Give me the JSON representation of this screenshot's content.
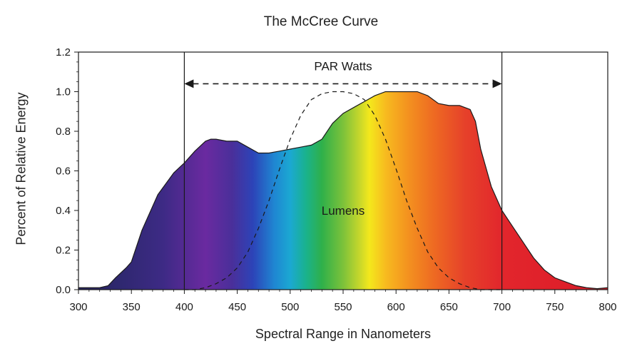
{
  "chart_data": {
    "type": "area",
    "title": "The McCree Curve",
    "xlabel": "Spectral Range in Nanometers",
    "ylabel": "Percent of Relative Energy",
    "xlim": [
      300,
      800
    ],
    "ylim": [
      0.0,
      1.2
    ],
    "x_ticks": [
      "300",
      "350",
      "400",
      "450",
      "500",
      "550",
      "600",
      "650",
      "700",
      "750",
      "800"
    ],
    "y_ticks": [
      "0.0",
      "0.2",
      "0.4",
      "0.6",
      "0.8",
      "1.0",
      "1.2"
    ],
    "grid": false,
    "fill": "visible spectrum gradient",
    "series": [
      {
        "style": "filled spectrum area",
        "x": [
          300,
          320,
          328,
          335,
          345,
          350,
          360,
          375,
          390,
          400,
          410,
          420,
          425,
          430,
          440,
          450,
          460,
          470,
          480,
          490,
          500,
          510,
          520,
          530,
          540,
          550,
          560,
          570,
          580,
          590,
          600,
          610,
          620,
          630,
          640,
          650,
          660,
          670,
          675,
          680,
          690,
          700,
          710,
          720,
          730,
          740,
          750,
          760,
          770,
          780,
          790,
          800
        ],
        "values": [
          0.01,
          0.01,
          0.02,
          0.06,
          0.11,
          0.14,
          0.3,
          0.48,
          0.59,
          0.64,
          0.7,
          0.75,
          0.76,
          0.76,
          0.75,
          0.75,
          0.72,
          0.69,
          0.69,
          0.7,
          0.71,
          0.72,
          0.73,
          0.76,
          0.84,
          0.89,
          0.92,
          0.95,
          0.98,
          1.0,
          1.0,
          1.0,
          1.0,
          0.98,
          0.94,
          0.93,
          0.93,
          0.91,
          0.85,
          0.71,
          0.52,
          0.4,
          0.32,
          0.24,
          0.16,
          0.1,
          0.06,
          0.04,
          0.02,
          0.01,
          0.005,
          0.01
        ]
      },
      {
        "name": "Lumens",
        "style": "dashed",
        "x": [
          400,
          410,
          420,
          430,
          440,
          450,
          460,
          470,
          480,
          490,
          500,
          510,
          520,
          530,
          540,
          550,
          560,
          570,
          580,
          590,
          600,
          610,
          620,
          630,
          640,
          650,
          660,
          670,
          680,
          690,
          700
        ],
        "values": [
          0.0,
          0.0,
          0.01,
          0.03,
          0.06,
          0.11,
          0.19,
          0.31,
          0.45,
          0.61,
          0.76,
          0.88,
          0.96,
          0.99,
          1.0,
          1.0,
          0.99,
          0.96,
          0.88,
          0.76,
          0.61,
          0.45,
          0.31,
          0.19,
          0.11,
          0.06,
          0.03,
          0.01,
          0.0,
          0.0,
          0.0
        ]
      }
    ],
    "vertical_lines": [
      400,
      700
    ],
    "annotations": [
      {
        "text": "PAR Watts",
        "x": 550,
        "y": 1.13,
        "arrow": {
          "from": 400,
          "to": 700,
          "y": 1.04,
          "style": "dashed double-headed"
        }
      },
      {
        "text": "Lumens",
        "x": 550,
        "y": 0.4
      }
    ]
  }
}
